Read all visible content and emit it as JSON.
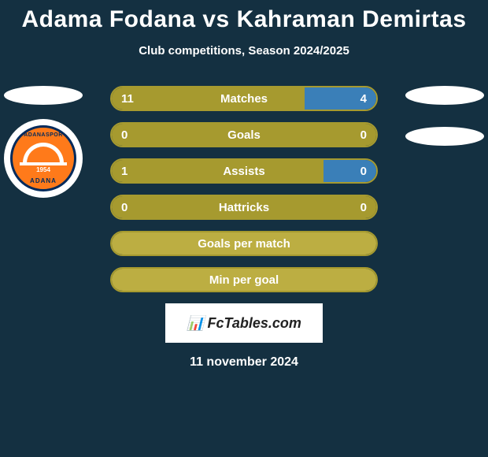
{
  "title": "Adama Fodana vs Kahraman Demirtas",
  "subtitle": "Club competitions, Season 2024/2025",
  "date": "11 november 2024",
  "colors": {
    "olive": "#a69a2f",
    "light_olive": "#bcae42",
    "blue": "#3a7fb8",
    "border": "#a69a2f",
    "bg": "#143041"
  },
  "badge": {
    "top_text": "ADANASPOR",
    "year": "1954",
    "bottom_text": "ADANA"
  },
  "watermark": {
    "icon": "📊",
    "text": "FcTables.com"
  },
  "stats": [
    {
      "label": "Matches",
      "left_val": "11",
      "right_val": "4",
      "left_pct": 73,
      "right_pct": 27,
      "left_color": "#a69a2f",
      "right_color": "#3a7fb8"
    },
    {
      "label": "Goals",
      "left_val": "0",
      "right_val": "0",
      "left_pct": 100,
      "right_pct": 0,
      "left_color": "#a69a2f",
      "right_color": "#3a7fb8"
    },
    {
      "label": "Assists",
      "left_val": "1",
      "right_val": "0",
      "left_pct": 80,
      "right_pct": 20,
      "left_color": "#a69a2f",
      "right_color": "#3a7fb8"
    },
    {
      "label": "Hattricks",
      "left_val": "0",
      "right_val": "0",
      "left_pct": 100,
      "right_pct": 0,
      "left_color": "#a69a2f",
      "right_color": "#3a7fb8"
    },
    {
      "label": "Goals per match",
      "left_val": "",
      "right_val": "",
      "left_pct": 100,
      "right_pct": 0,
      "left_color": "#bcae42",
      "right_color": "#3a7fb8"
    },
    {
      "label": "Min per goal",
      "left_val": "",
      "right_val": "",
      "left_pct": 100,
      "right_pct": 0,
      "left_color": "#bcae42",
      "right_color": "#3a7fb8"
    }
  ]
}
